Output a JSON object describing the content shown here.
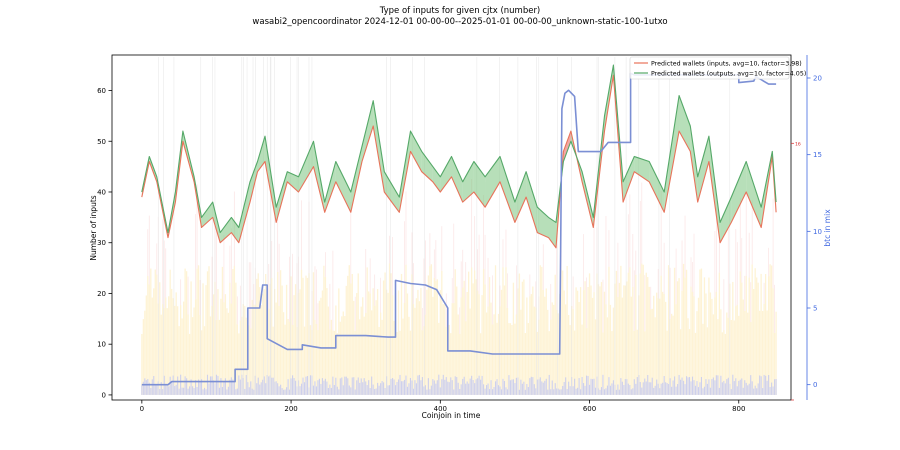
{
  "chart_data": {
    "type": "line",
    "title": "Type of inputs for given cjtx (number)",
    "subtitle": "wasabi2_opencoordinator 2024-12-01 00-00-00--2025-01-01 00-00-00_unknown-static-100-1utxo",
    "xlabel": "Coinjoin in time",
    "ylabel": "Number of inputs",
    "y2label": "btc in mix",
    "xlim": [
      -40,
      870
    ],
    "ylim": [
      -1,
      67
    ],
    "y2lim": [
      -1,
      21.5
    ],
    "xticks": [
      0,
      200,
      400,
      600,
      800
    ],
    "yticks": [
      0,
      10,
      20,
      30,
      40,
      50,
      60
    ],
    "y2ticks": [
      0,
      5,
      10,
      15,
      20
    ],
    "x2tick_marks": [
      16
    ],
    "legend_position": "upper-right",
    "series": [
      {
        "name": "Predicted wallets (inputs, avg=10, factor=3.98)",
        "color": "#e8735a",
        "axis": "left",
        "x": [
          0,
          10,
          20,
          35,
          45,
          55,
          70,
          80,
          95,
          105,
          120,
          130,
          145,
          155,
          165,
          180,
          195,
          210,
          230,
          245,
          260,
          280,
          295,
          310,
          325,
          345,
          360,
          375,
          390,
          400,
          415,
          430,
          445,
          460,
          480,
          500,
          515,
          530,
          545,
          555,
          565,
          575,
          590,
          605,
          620,
          632,
          645,
          660,
          680,
          700,
          720,
          735,
          745,
          760,
          775,
          790,
          810,
          830,
          845,
          850
        ],
        "y": [
          39,
          46,
          42,
          31,
          38,
          50,
          42,
          33,
          35,
          30,
          32,
          30,
          38,
          44,
          46,
          34,
          42,
          40,
          45,
          36,
          42,
          36,
          46,
          53,
          40,
          36,
          48,
          44,
          42,
          40,
          43,
          38,
          40,
          37,
          42,
          34,
          39,
          32,
          31,
          29,
          48,
          52,
          42,
          33,
          52,
          63,
          38,
          44,
          42,
          36,
          52,
          48,
          38,
          46,
          30,
          34,
          40,
          33,
          47,
          36
        ]
      },
      {
        "name": "Predicted wallets (outputs, avg=10, factor=4.05)",
        "color": "#55a868",
        "axis": "left",
        "x": [
          0,
          10,
          20,
          35,
          45,
          55,
          70,
          80,
          95,
          105,
          120,
          130,
          145,
          155,
          165,
          180,
          195,
          210,
          230,
          245,
          260,
          280,
          295,
          310,
          325,
          345,
          360,
          375,
          390,
          400,
          415,
          430,
          445,
          460,
          480,
          500,
          515,
          530,
          545,
          555,
          565,
          575,
          590,
          605,
          620,
          632,
          645,
          660,
          680,
          700,
          720,
          735,
          745,
          760,
          775,
          790,
          810,
          830,
          845,
          850
        ],
        "y": [
          40,
          47,
          43,
          32,
          40,
          52,
          43,
          35,
          38,
          32,
          35,
          33,
          42,
          46,
          51,
          37,
          44,
          43,
          50,
          38,
          46,
          40,
          49,
          58,
          44,
          39,
          52,
          48,
          45,
          43,
          47,
          42,
          46,
          43,
          47,
          38,
          44,
          37,
          35,
          34,
          46,
          50,
          44,
          35,
          55,
          65,
          42,
          47,
          46,
          40,
          59,
          53,
          43,
          51,
          34,
          39,
          46,
          37,
          48,
          38
        ]
      },
      {
        "name": "btc in mix",
        "color": "#7b8fd4",
        "axis": "right",
        "x": [
          0,
          35,
          40,
          80,
          125,
          125,
          142,
          142,
          158,
          162,
          168,
          168,
          195,
          215,
          215,
          240,
          260,
          260,
          300,
          330,
          340,
          340,
          360,
          380,
          395,
          410,
          410,
          440,
          470,
          480,
          500,
          560,
          563,
          567,
          572,
          580,
          585,
          590,
          590,
          615,
          625,
          655,
          655,
          660,
          800,
          800,
          820,
          823,
          840,
          850
        ],
        "y": [
          0,
          0,
          0.2,
          0.2,
          0.2,
          1,
          1,
          5,
          5,
          6.5,
          6.5,
          3,
          2.3,
          2.3,
          2.6,
          2.4,
          2.4,
          3.2,
          3.2,
          3.1,
          3.1,
          6.8,
          6.6,
          6.5,
          6.2,
          5,
          2.2,
          2.2,
          2,
          2,
          2,
          2,
          18,
          19,
          19.2,
          18.8,
          15.2,
          15.2,
          15.2,
          15.2,
          15.8,
          15.8,
          20.3,
          20.2,
          20.2,
          19.7,
          19.8,
          20.1,
          19.6,
          19.6
        ]
      }
    ]
  }
}
